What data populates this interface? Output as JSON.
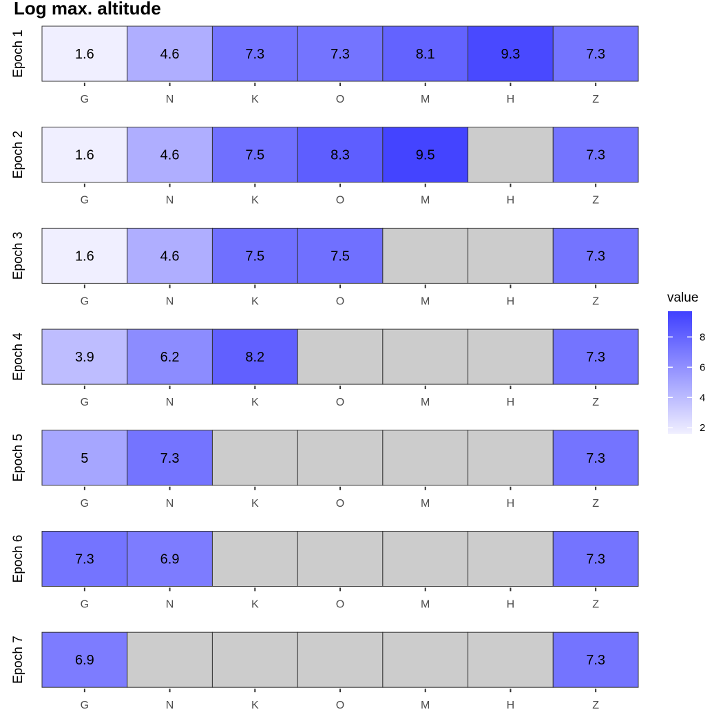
{
  "chart_data": {
    "type": "heatmap",
    "title": "Log max. altitude",
    "columns": [
      "G",
      "N",
      "K",
      "O",
      "M",
      "H",
      "Z"
    ],
    "rows": [
      {
        "label": "Epoch 1",
        "values": [
          1.6,
          4.6,
          7.3,
          7.3,
          8.1,
          9.3,
          7.3
        ]
      },
      {
        "label": "Epoch 2",
        "values": [
          1.6,
          4.6,
          7.5,
          8.3,
          9.5,
          null,
          7.3
        ]
      },
      {
        "label": "Epoch 3",
        "values": [
          1.6,
          4.6,
          7.5,
          7.5,
          null,
          null,
          7.3
        ]
      },
      {
        "label": "Epoch 4",
        "values": [
          3.9,
          6.2,
          8.2,
          null,
          null,
          null,
          7.3
        ]
      },
      {
        "label": "Epoch 5",
        "values": [
          5,
          7.3,
          null,
          null,
          null,
          null,
          7.3
        ]
      },
      {
        "label": "Epoch 6",
        "values": [
          7.3,
          6.9,
          null,
          null,
          null,
          null,
          7.3
        ]
      },
      {
        "label": "Epoch 7",
        "values": [
          6.9,
          null,
          null,
          null,
          null,
          null,
          7.3
        ]
      }
    ],
    "legend": {
      "title": "value",
      "ticks": [
        2,
        4,
        6,
        8
      ],
      "range": [
        1.6,
        9.7
      ],
      "position": "right"
    },
    "colors": {
      "low": "#f0efff",
      "high": "#4040ff",
      "missing": "#cccccc",
      "border": "#333333",
      "tick_text": "#4d4d4d"
    }
  }
}
